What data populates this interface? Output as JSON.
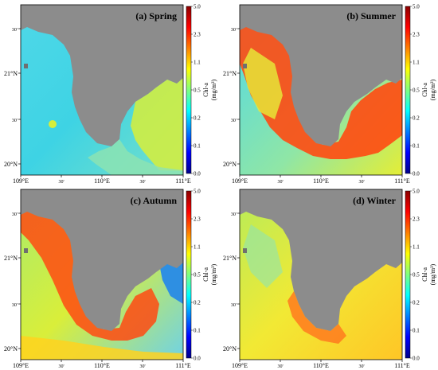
{
  "figure": {
    "panels": [
      {
        "id": "a",
        "title": "(a) Spring",
        "palette": "spring"
      },
      {
        "id": "b",
        "title": "(b) Summer",
        "palette": "summer"
      },
      {
        "id": "c",
        "title": "(c) Autumn",
        "palette": "autumn"
      },
      {
        "id": "d",
        "title": "(d) Winter",
        "palette": "winter"
      }
    ],
    "lat_ticks": [
      "30'",
      "21°N",
      "30'",
      "20°N"
    ],
    "lon_ticks": [
      "109°E",
      "30'",
      "110°E",
      "30'",
      "111°E"
    ],
    "colorbar": {
      "title": "Chl-a",
      "unit": "(mg/m³)",
      "labels": [
        "5.0",
        "2.3",
        "1.1",
        "0.5",
        "0.2",
        "0.1",
        "0.0"
      ],
      "colors": [
        "#00008b",
        "#0000ff",
        "#007fff",
        "#00ffff",
        "#7fff7f",
        "#ffff00",
        "#ff7f00",
        "#ff0000",
        "#8b0000"
      ]
    },
    "colors": {
      "land": "#8c8c8c",
      "sea_low": "#3fd6e6",
      "sea_mid": "#b9ec3e",
      "sea_high": "#ff4a12"
    }
  }
}
